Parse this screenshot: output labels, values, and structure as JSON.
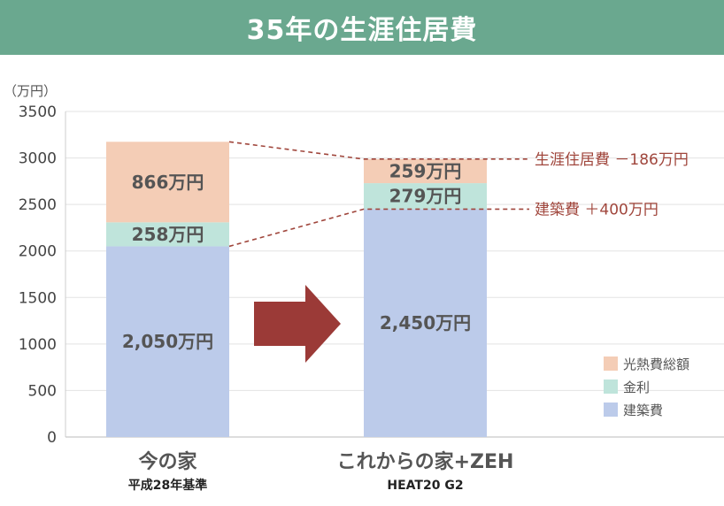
{
  "title": "35年の生涯住居費",
  "chart_data": {
    "type": "bar",
    "stacked": true,
    "unit_label": "（万円）",
    "ylim": [
      0,
      3500
    ],
    "yticks": [
      "0",
      "500",
      "1000",
      "1500",
      "2000",
      "2500",
      "3000",
      "3500"
    ],
    "grid": true,
    "legend_position": "bottom-right",
    "categories": [
      {
        "label": "今の家",
        "sublabel": "平成28年基準"
      },
      {
        "label": "これからの家+ZEH",
        "sublabel": "HEAT20 G2"
      }
    ],
    "series": [
      {
        "name": "建築費",
        "color": "#bccbea",
        "values": [
          2050,
          2450
        ],
        "labels": [
          "2,050万円",
          "2,450万円"
        ]
      },
      {
        "name": "金利",
        "color": "#bfe4db",
        "values": [
          258,
          279
        ],
        "labels": [
          "258万円",
          "279万円"
        ]
      },
      {
        "name": "光熱費総額",
        "color": "#f4cdb6",
        "values": [
          866,
          259
        ],
        "labels": [
          "866万円",
          "259万円"
        ]
      }
    ],
    "annotations": [
      {
        "text": "生涯住居費 －186万円"
      },
      {
        "text": "建築費 ＋400万円"
      }
    ],
    "arrow_color": "#9b3a37"
  }
}
